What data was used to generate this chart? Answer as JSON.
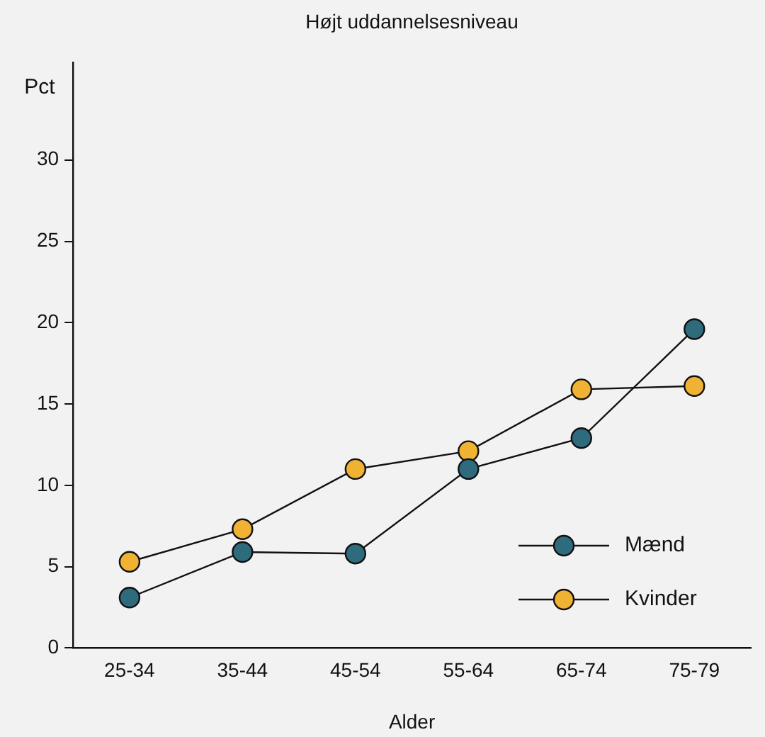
{
  "chart_data": {
    "type": "line",
    "title": "Højt uddannelsesniveau",
    "xlabel": "Alder",
    "ylabel": "Pct",
    "categories": [
      "25-34",
      "35-44",
      "45-54",
      "55-64",
      "65-74",
      "75-79"
    ],
    "series": [
      {
        "name": "Mænd",
        "color": "#2e6b7c",
        "values": [
          3.1,
          5.9,
          5.8,
          11.0,
          12.9,
          19.6
        ]
      },
      {
        "name": "Kvinder",
        "color": "#efb233",
        "values": [
          5.3,
          7.3,
          11.0,
          12.1,
          15.9,
          16.1
        ]
      }
    ],
    "ylim": [
      0,
      36
    ],
    "yticks": [
      0,
      5,
      10,
      15,
      20,
      25,
      30
    ],
    "grid": false,
    "legend": "bottom right",
    "marker": "circle",
    "line_style": "solid"
  }
}
